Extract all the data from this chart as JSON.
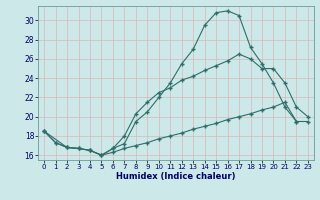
{
  "xlabel": "Humidex (Indice chaleur)",
  "bg_color": "#cce8e8",
  "grid_color": "#b8d8d8",
  "line_color": "#2e6e6a",
  "xlim": [
    -0.5,
    23.5
  ],
  "ylim": [
    15.5,
    31.5
  ],
  "xticks": [
    0,
    1,
    2,
    3,
    4,
    5,
    6,
    7,
    8,
    9,
    10,
    11,
    12,
    13,
    14,
    15,
    16,
    17,
    18,
    19,
    20,
    21,
    22,
    23
  ],
  "yticks": [
    16,
    18,
    20,
    22,
    24,
    26,
    28,
    30
  ],
  "line1_x": [
    0,
    1,
    2,
    3,
    4,
    5,
    6,
    7,
    8,
    9,
    10,
    11,
    12,
    13,
    14,
    15,
    16,
    17,
    18,
    19,
    20,
    21,
    22
  ],
  "line1_y": [
    18.5,
    17.3,
    16.8,
    16.7,
    16.5,
    16.0,
    16.7,
    17.2,
    19.5,
    20.5,
    22.0,
    23.5,
    25.5,
    27.0,
    29.5,
    30.8,
    31.0,
    30.5,
    27.2,
    25.5,
    23.5,
    21.0,
    19.5
  ],
  "line2_x": [
    0,
    2,
    3,
    4,
    5,
    6,
    7,
    8,
    9,
    10,
    11,
    12,
    13,
    14,
    15,
    16,
    17,
    18,
    19,
    20,
    21,
    22,
    23
  ],
  "line2_y": [
    18.5,
    16.8,
    16.7,
    16.5,
    16.0,
    16.7,
    18.0,
    20.3,
    21.5,
    22.5,
    23.0,
    23.8,
    24.2,
    24.8,
    25.3,
    25.8,
    26.5,
    26.0,
    25.0,
    25.0,
    23.5,
    21.0,
    20.0
  ],
  "line3_x": [
    0,
    1,
    2,
    3,
    4,
    5,
    6,
    7,
    8,
    9,
    10,
    11,
    12,
    13,
    14,
    15,
    16,
    17,
    18,
    19,
    20,
    21,
    22,
    23
  ],
  "line3_y": [
    18.5,
    17.3,
    16.8,
    16.7,
    16.5,
    16.0,
    16.3,
    16.7,
    17.0,
    17.3,
    17.7,
    18.0,
    18.3,
    18.7,
    19.0,
    19.3,
    19.7,
    20.0,
    20.3,
    20.7,
    21.0,
    21.5,
    19.5,
    19.5
  ]
}
